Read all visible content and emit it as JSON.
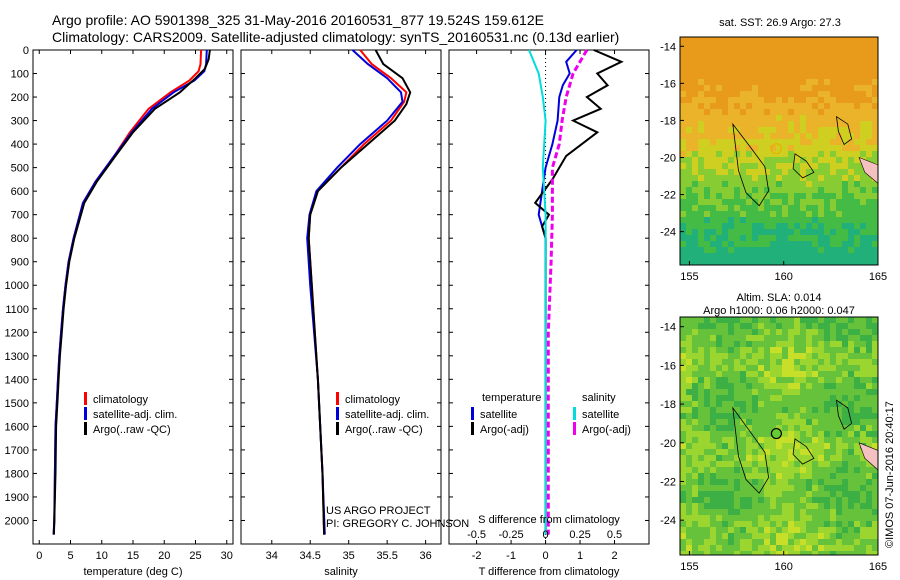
{
  "header": {
    "line1": "Argo profile: AO 5901398_325 31-May-2016 20160531_877 19.524S 159.612E",
    "line2": "Climatology: CARS2009. Satellite-adjusted climatology: synTS_20160531.nc (0.13d earlier)"
  },
  "colors": {
    "climatology": "#ff0000",
    "satellite": "#0000dd",
    "argo": "#000000",
    "sal_satellite": "#00dddd",
    "sal_argo": "#ee00ee",
    "island": "#f5c0c0"
  },
  "chart_data": [
    {
      "id": "temperature_profile",
      "type": "line",
      "xlabel": "temperature (deg C)",
      "ylabel": "",
      "xlim": [
        -1,
        31
      ],
      "ylim": [
        2100,
        0
      ],
      "xticks": [
        0,
        5,
        10,
        15,
        20,
        25,
        30
      ],
      "yticks": [
        0,
        100,
        200,
        300,
        400,
        500,
        600,
        700,
        800,
        900,
        1000,
        1100,
        1200,
        1300,
        1400,
        1500,
        1600,
        1700,
        1800,
        1900,
        2000
      ],
      "legend": [
        "climatology",
        "satellite-adj. clim.",
        "Argo(..raw -QC)"
      ],
      "series": [
        {
          "name": "climatology",
          "color": "#ff0000",
          "x": [
            25.9,
            25.8,
            25.5,
            24,
            21,
            17.5,
            14.5,
            12,
            9,
            7,
            5.5,
            4.7,
            4.2,
            3.8,
            3.5,
            3.2,
            3,
            2.8,
            2.6,
            2.5,
            2.4,
            2.3
          ],
          "y": [
            0,
            60,
            90,
            130,
            180,
            250,
            350,
            450,
            560,
            650,
            800,
            900,
            1000,
            1100,
            1200,
            1300,
            1400,
            1500,
            1600,
            1800,
            2000,
            2060
          ]
        },
        {
          "name": "satellite-adj. clim.",
          "color": "#0000dd",
          "x": [
            26.8,
            26.7,
            26.4,
            24.8,
            21.5,
            18,
            14.8,
            12,
            9,
            7,
            5.5,
            4.7,
            4.2,
            3.8,
            3.5,
            3.2,
            3,
            2.8,
            2.6,
            2.5,
            2.4,
            2.3
          ],
          "y": [
            0,
            60,
            90,
            130,
            180,
            250,
            350,
            450,
            560,
            650,
            800,
            900,
            1000,
            1100,
            1200,
            1300,
            1400,
            1500,
            1600,
            1800,
            2000,
            2060
          ]
        },
        {
          "name": "Argo(..raw -QC)",
          "color": "#000000",
          "x": [
            27.3,
            27.1,
            26.5,
            25,
            22.5,
            18.5,
            15,
            12.2,
            9.2,
            7.2,
            5.6,
            4.8,
            4.3,
            3.9,
            3.6,
            3.3,
            3.1,
            2.9,
            2.7,
            2.6,
            2.4,
            2.35
          ],
          "y": [
            0,
            40,
            80,
            120,
            180,
            250,
            350,
            450,
            560,
            650,
            800,
            900,
            1000,
            1100,
            1200,
            1300,
            1400,
            1500,
            1600,
            1800,
            2000,
            2060
          ]
        }
      ]
    },
    {
      "id": "salinity_profile",
      "type": "line",
      "xlabel": "salinity",
      "ylabel": "",
      "xlim": [
        33.6,
        36.2
      ],
      "ylim": [
        2100,
        0
      ],
      "xticks": [
        34,
        34.5,
        35,
        35.5,
        36
      ],
      "xticklabels": [
        "34",
        "34.5",
        "35",
        "35.5",
        "36"
      ],
      "legend": [
        "climatology",
        "satellite-adj. clim.",
        "Argo(..raw -QC)"
      ],
      "series": [
        {
          "name": "climatology",
          "color": "#ff0000",
          "x": [
            35.15,
            35.3,
            35.55,
            35.75,
            35.72,
            35.55,
            35.2,
            34.9,
            34.6,
            34.5,
            34.48,
            34.52,
            34.56,
            34.6,
            34.63,
            34.66,
            34.68
          ],
          "y": [
            0,
            60,
            120,
            180,
            220,
            300,
            400,
            500,
            600,
            700,
            800,
            1000,
            1200,
            1400,
            1600,
            1800,
            2060
          ]
        },
        {
          "name": "satellite-adj. clim.",
          "color": "#0000dd",
          "x": [
            35.05,
            35.25,
            35.5,
            35.68,
            35.7,
            35.5,
            35.15,
            34.85,
            34.58,
            34.49,
            34.46,
            34.5,
            34.55,
            34.6,
            34.63,
            34.66,
            34.69
          ],
          "y": [
            0,
            60,
            120,
            180,
            220,
            300,
            400,
            500,
            600,
            700,
            800,
            1000,
            1200,
            1400,
            1600,
            1800,
            2060
          ]
        },
        {
          "name": "Argo(..raw -QC)",
          "color": "#000000",
          "x": [
            35.35,
            35.45,
            35.7,
            35.8,
            35.75,
            35.6,
            35.25,
            34.9,
            34.6,
            34.5,
            34.48,
            34.52,
            34.56,
            34.6,
            34.63,
            34.66,
            34.68
          ],
          "y": [
            0,
            60,
            120,
            180,
            230,
            300,
            400,
            500,
            600,
            700,
            800,
            1000,
            1200,
            1400,
            1600,
            1800,
            2060
          ]
        }
      ]
    },
    {
      "id": "difference_profile",
      "type": "line",
      "xlabel": "T difference from climatology",
      "xlabel_top": "S difference from climatology",
      "xlim": [
        -2.8,
        3
      ],
      "ylim": [
        2100,
        0
      ],
      "xticks": [
        -2,
        -1,
        0,
        1,
        2
      ],
      "xticks_sal": [
        -0.5,
        -0.25,
        0,
        0.25,
        0.5
      ],
      "xticklabels_sal": [
        "-0.5",
        "-0.25",
        "0",
        "0.25",
        "0.5"
      ],
      "legend_temperature": {
        "title": "temperature",
        "items": [
          "satellite",
          "Argo(-adj)"
        ]
      },
      "legend_salinity": {
        "title": "salinity",
        "items": [
          "satellite",
          "Argo(-adj)"
        ]
      },
      "series": [
        {
          "name": "temperature satellite",
          "color": "#0000dd",
          "x": [
            0.9,
            0.6,
            0.7,
            0.5,
            0.4,
            0.35,
            0.2,
            0,
            -0.1,
            -0.2,
            -0.1,
            0,
            0,
            0,
            0,
            0
          ],
          "y": [
            0,
            50,
            100,
            150,
            200,
            300,
            400,
            500,
            600,
            700,
            750,
            800,
            1000,
            1400,
            1800,
            2060
          ]
        },
        {
          "name": "temperature Argo(-adj)",
          "color": "#000000",
          "x": [
            1.4,
            2.2,
            1.5,
            1.8,
            1.2,
            1.6,
            0.8,
            1.5,
            0.6,
            0.2,
            -0.3,
            0.1,
            -0.1,
            0,
            0,
            0,
            0,
            0
          ],
          "y": [
            0,
            50,
            100,
            150,
            200,
            250,
            300,
            350,
            450,
            550,
            650,
            700,
            750,
            800,
            1000,
            1400,
            1800,
            2060
          ]
        },
        {
          "name": "salinity satellite",
          "color": "#00dddd",
          "x": [
            -0.12,
            -0.05,
            -0.02,
            0,
            -0.02,
            0,
            0,
            0,
            0
          ],
          "y": [
            0,
            100,
            200,
            300,
            500,
            700,
            1000,
            1500,
            2060
          ]
        },
        {
          "name": "salinity Argo(-adj)",
          "color": "#ee00ee",
          "x": [
            0.3,
            0.2,
            0.15,
            0.12,
            0.1,
            0.05,
            0.05,
            0.04,
            0.02,
            0.02,
            0.02
          ],
          "y": [
            0,
            100,
            200,
            300,
            400,
            500,
            700,
            900,
            1200,
            1600,
            2060
          ]
        }
      ]
    },
    {
      "id": "sst_map",
      "type": "heatmap",
      "title": "sat. SST: 26.9 Argo: 27.3",
      "xticks": [
        155,
        160,
        165
      ],
      "yticks": [
        -14,
        -16,
        -18,
        -20,
        -22,
        -24
      ]
    },
    {
      "id": "sla_map",
      "type": "heatmap",
      "title_line1": "Altim. SLA: 0.014",
      "title_line2": "Argo h1000: 0.06 h2000: 0.047",
      "xticks": [
        155,
        160,
        165
      ],
      "yticks": [
        -14,
        -16,
        -18,
        -20,
        -22,
        -24
      ],
      "side_label": "©IMOS 07-Jun-2016 20:40:17"
    }
  ],
  "annotations": {
    "project": "US ARGO PROJECT",
    "pi": "PI: GREGORY C. JOHNSON"
  }
}
